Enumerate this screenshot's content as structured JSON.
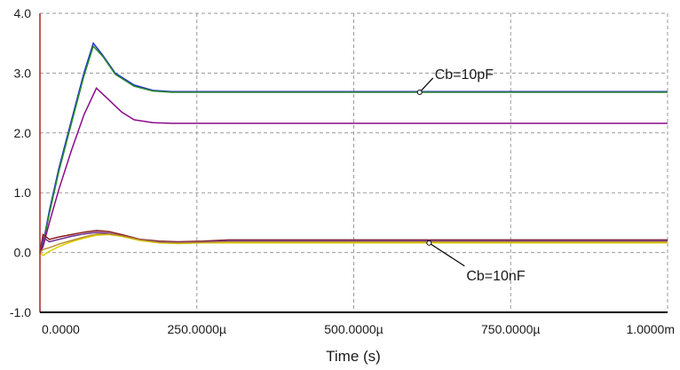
{
  "chart_data": {
    "type": "line",
    "title": "",
    "xlabel": "Time (s)",
    "ylabel": "",
    "xlim": [
      0,
      0.001
    ],
    "ylim": [
      -1.0,
      4.0
    ],
    "grid": true,
    "x_tick_labels": [
      "0.0000",
      "250.0000µ",
      "500.0000µ",
      "750.0000µ",
      "1.0000m"
    ],
    "x_ticks": [
      0,
      0.00025,
      0.0005,
      0.00075,
      0.001
    ],
    "y_tick_labels": [
      "-1.0",
      "0.0",
      "1.0",
      "2.0",
      "3.0",
      "4.0"
    ],
    "y_ticks": [
      -1,
      0,
      1,
      2,
      3,
      4
    ],
    "annotations": [
      {
        "text": "Cb=10pF",
        "x": 0.000605,
        "y": 2.68
      },
      {
        "text": "Cb=10nF",
        "x": 0.00062,
        "y": 0.16
      }
    ],
    "series": [
      {
        "color": "#1f2fd0",
        "x": [
          0,
          5e-06,
          1.5e-05,
          3e-05,
          5e-05,
          7e-05,
          8.5e-05,
          0.0001,
          0.00012,
          0.00015,
          0.00018,
          0.00021,
          0.0003,
          0.0006,
          0.001
        ],
        "y": [
          0,
          0.15,
          0.7,
          1.4,
          2.2,
          3.0,
          3.5,
          3.3,
          3.0,
          2.8,
          2.71,
          2.69,
          2.69,
          2.69,
          2.69
        ]
      },
      {
        "color": "#2a8a2a",
        "x": [
          0,
          5e-06,
          1.5e-05,
          3e-05,
          5e-05,
          7e-05,
          8.5e-05,
          0.0001,
          0.00012,
          0.00015,
          0.00018,
          0.00021,
          0.0003,
          0.0006,
          0.001
        ],
        "y": [
          0,
          0.12,
          0.65,
          1.35,
          2.15,
          2.95,
          3.45,
          3.28,
          2.98,
          2.78,
          2.7,
          2.68,
          2.68,
          2.68,
          2.68
        ]
      },
      {
        "color": "#8b0a8b",
        "x": [
          0,
          5e-06,
          1.5e-05,
          3e-05,
          5e-05,
          7e-05,
          9e-05,
          0.00011,
          0.00013,
          0.00015,
          0.00018,
          0.00021,
          0.0003,
          0.0006,
          0.001
        ],
        "y": [
          0,
          0.1,
          0.5,
          1.05,
          1.7,
          2.3,
          2.75,
          2.55,
          2.35,
          2.22,
          2.17,
          2.16,
          2.16,
          2.16,
          2.16
        ]
      },
      {
        "color": "#8b1a1a",
        "x": [
          0,
          5e-06,
          1.5e-05,
          3e-05,
          5e-05,
          7e-05,
          9e-05,
          0.00011,
          0.00013,
          0.00016,
          0.00019,
          0.00022,
          0.00026,
          0.0003,
          0.0006,
          0.001
        ],
        "y": [
          0,
          0.3,
          0.22,
          0.26,
          0.3,
          0.34,
          0.37,
          0.35,
          0.3,
          0.22,
          0.19,
          0.18,
          0.19,
          0.21,
          0.21,
          0.21
        ]
      },
      {
        "color": "#6a2a8a",
        "x": [
          0,
          5e-06,
          1.5e-05,
          3e-05,
          5e-05,
          7e-05,
          9e-05,
          0.00011,
          0.00013,
          0.00016,
          0.00019,
          0.00022,
          0.00026,
          0.0003,
          0.0006,
          0.001
        ],
        "y": [
          0,
          0.25,
          0.18,
          0.22,
          0.27,
          0.31,
          0.34,
          0.32,
          0.28,
          0.21,
          0.18,
          0.17,
          0.18,
          0.2,
          0.2,
          0.2
        ]
      },
      {
        "color": "#e0d000",
        "x": [
          0,
          5e-06,
          1.5e-05,
          3e-05,
          5e-05,
          7e-05,
          9e-05,
          0.00011,
          0.00013,
          0.00016,
          0.00019,
          0.00022,
          0.00026,
          0.0003,
          0.0006,
          0.001
        ],
        "y": [
          0,
          -0.05,
          0.02,
          0.1,
          0.18,
          0.24,
          0.29,
          0.3,
          0.27,
          0.2,
          0.16,
          0.15,
          0.16,
          0.16,
          0.16,
          0.16
        ]
      },
      {
        "color": "#b89030",
        "x": [
          0,
          5e-06,
          1.5e-05,
          3e-05,
          5e-05,
          7e-05,
          9e-05,
          0.00011,
          0.00013,
          0.00016,
          0.00019,
          0.00022,
          0.00026,
          0.0003,
          0.0006,
          0.001
        ],
        "y": [
          0,
          0.05,
          0.08,
          0.14,
          0.2,
          0.26,
          0.31,
          0.31,
          0.28,
          0.21,
          0.17,
          0.16,
          0.17,
          0.18,
          0.18,
          0.18
        ]
      }
    ]
  }
}
